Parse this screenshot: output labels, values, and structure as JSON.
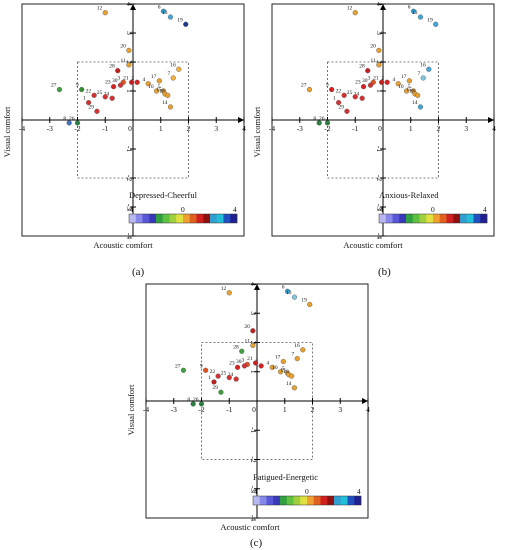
{
  "figure": {
    "panel_labels": [
      "(a)",
      "(b)",
      "(c)"
    ]
  },
  "chart_data": [
    {
      "type": "scatter",
      "panel": "(a)",
      "title": "Depressed-Cheerful",
      "xlabel": "Acoustic comfort",
      "ylabel": "Visual comfort",
      "xlim": [
        -4,
        4
      ],
      "ylim": [
        -4,
        4
      ],
      "xticks": [
        -4,
        -3,
        -2,
        -1,
        0,
        1,
        2,
        3,
        4
      ],
      "yticks_shown": [
        4,
        3,
        2,
        1,
        -1,
        -2,
        -3,
        -4
      ],
      "dashed_box": {
        "x": [
          -2,
          2
        ],
        "y": [
          -2,
          2
        ]
      },
      "colorbar": {
        "min": -4,
        "max": 4,
        "tick_labels": [
          "-4",
          "0",
          "4"
        ]
      },
      "points": [
        {
          "id": "1",
          "x": -1.6,
          "y": 0.6,
          "color": "#d83030"
        },
        {
          "id": "2",
          "x": 0.15,
          "y": 1.3,
          "color": "#d82020"
        },
        {
          "id": "3",
          "x": -0.35,
          "y": 1.3,
          "color": "#e05020"
        },
        {
          "id": "4",
          "x": 0.55,
          "y": 1.25,
          "color": "#e8a030"
        },
        {
          "id": "5",
          "x": 1.1,
          "y": 1.0,
          "color": "#e8a030"
        },
        {
          "id": "6",
          "x": 1.1,
          "y": 3.75,
          "color": "#3aa0d0"
        },
        {
          "id": "7",
          "x": 1.45,
          "y": 1.45,
          "color": "#f0b040"
        },
        {
          "id": "8",
          "x": -2.3,
          "y": -0.1,
          "color": "#4070c0"
        },
        {
          "id": "9",
          "x": -1.85,
          "y": 1.05,
          "color": "#309030"
        },
        {
          "id": "10",
          "x": 0.85,
          "y": 1.0,
          "color": "#e8a030"
        },
        {
          "id": "11",
          "x": -0.15,
          "y": 1.9,
          "color": "#e8a030"
        },
        {
          "id": "12",
          "x": -1.0,
          "y": 3.7,
          "color": "#e8a030"
        },
        {
          "id": "13",
          "x": 1.35,
          "y": 3.55,
          "color": "#40a8d8"
        },
        {
          "id": "14",
          "x": 1.35,
          "y": 0.45,
          "color": "#e8a030"
        },
        {
          "id": "15",
          "x": 1.15,
          "y": 0.9,
          "color": "#e8a030"
        },
        {
          "id": "16",
          "x": 1.65,
          "y": 1.75,
          "color": "#f0b040"
        },
        {
          "id": "17",
          "x": 0.95,
          "y": 1.35,
          "color": "#e8a030"
        },
        {
          "id": "18",
          "x": 1.25,
          "y": 0.85,
          "color": "#e8a030"
        },
        {
          "id": "19",
          "x": 1.9,
          "y": 3.3,
          "color": "#203890"
        },
        {
          "id": "20",
          "x": -0.15,
          "y": 2.4,
          "color": "#e8a030"
        },
        {
          "id": "21",
          "x": -0.05,
          "y": 1.3,
          "color": "#c82020"
        },
        {
          "id": "22",
          "x": -1.4,
          "y": 0.85,
          "color": "#d83030"
        },
        {
          "id": "23",
          "x": -0.7,
          "y": 1.15,
          "color": "#d82020"
        },
        {
          "id": "24",
          "x": -0.75,
          "y": 0.75,
          "color": "#d83030"
        },
        {
          "id": "25",
          "x": -1.0,
          "y": 0.8,
          "color": "#d83030"
        },
        {
          "id": "26",
          "x": -2.0,
          "y": -0.1,
          "color": "#2a8040"
        },
        {
          "id": "27",
          "x": -2.65,
          "y": 1.05,
          "color": "#40a040"
        },
        {
          "id": "28",
          "x": -0.55,
          "y": 1.7,
          "color": "#c02020"
        },
        {
          "id": "29",
          "x": -1.3,
          "y": 0.3,
          "color": "#d83030"
        },
        {
          "id": "30",
          "x": -0.45,
          "y": 1.2,
          "color": "#d83030"
        }
      ]
    },
    {
      "type": "scatter",
      "panel": "(b)",
      "title": "Anxious-Relaxed",
      "xlabel": "Acoustic comfort",
      "ylabel": "Visual comfort",
      "xlim": [
        -4,
        4
      ],
      "ylim": [
        -4,
        4
      ],
      "xticks": [
        -4,
        -3,
        -2,
        -1,
        0,
        1,
        2,
        3,
        4
      ],
      "yticks_shown": [
        4,
        3,
        2,
        1,
        -1,
        -2,
        -3,
        -4
      ],
      "dashed_box": {
        "x": [
          -2,
          2
        ],
        "y": [
          -2,
          2
        ]
      },
      "colorbar": {
        "min": -4,
        "max": 4,
        "tick_labels": [
          "-4",
          "0",
          "4"
        ]
      },
      "points": [
        {
          "id": "1",
          "x": -1.6,
          "y": 0.6,
          "color": "#d83030"
        },
        {
          "id": "2",
          "x": 0.15,
          "y": 1.3,
          "color": "#d82020"
        },
        {
          "id": "3",
          "x": -0.35,
          "y": 1.3,
          "color": "#e05020"
        },
        {
          "id": "4",
          "x": 0.55,
          "y": 1.25,
          "color": "#e8a030"
        },
        {
          "id": "5",
          "x": 1.1,
          "y": 1.0,
          "color": "#e8a030"
        },
        {
          "id": "6",
          "x": 1.1,
          "y": 3.75,
          "color": "#3aa0d0"
        },
        {
          "id": "7",
          "x": 1.45,
          "y": 1.45,
          "color": "#80c8e0"
        },
        {
          "id": "8",
          "x": -2.3,
          "y": -0.1,
          "color": "#2a8040"
        },
        {
          "id": "9",
          "x": -1.85,
          "y": 1.05,
          "color": "#d82020"
        },
        {
          "id": "10",
          "x": 0.85,
          "y": 1.0,
          "color": "#e8a030"
        },
        {
          "id": "11",
          "x": -0.15,
          "y": 1.9,
          "color": "#e8a030"
        },
        {
          "id": "12",
          "x": -1.0,
          "y": 3.7,
          "color": "#e8a030"
        },
        {
          "id": "13",
          "x": 1.35,
          "y": 3.55,
          "color": "#40a8d8"
        },
        {
          "id": "14",
          "x": 1.35,
          "y": 0.45,
          "color": "#40a8d8"
        },
        {
          "id": "15",
          "x": 1.15,
          "y": 0.9,
          "color": "#e8a030"
        },
        {
          "id": "16",
          "x": 1.65,
          "y": 1.75,
          "color": "#40a8d8"
        },
        {
          "id": "17",
          "x": 0.95,
          "y": 1.35,
          "color": "#e8a030"
        },
        {
          "id": "18",
          "x": 1.25,
          "y": 0.85,
          "color": "#e8a030"
        },
        {
          "id": "19",
          "x": 1.9,
          "y": 3.3,
          "color": "#40a8d8"
        },
        {
          "id": "20",
          "x": -0.15,
          "y": 2.4,
          "color": "#e8a030"
        },
        {
          "id": "21",
          "x": -0.05,
          "y": 1.3,
          "color": "#c82020"
        },
        {
          "id": "22",
          "x": -1.4,
          "y": 0.85,
          "color": "#d83030"
        },
        {
          "id": "23",
          "x": -0.7,
          "y": 1.15,
          "color": "#d82020"
        },
        {
          "id": "24",
          "x": -0.75,
          "y": 0.75,
          "color": "#d83030"
        },
        {
          "id": "25",
          "x": -1.0,
          "y": 0.8,
          "color": "#d83030"
        },
        {
          "id": "26",
          "x": -2.0,
          "y": -0.1,
          "color": "#2a8040"
        },
        {
          "id": "27",
          "x": -2.65,
          "y": 1.05,
          "color": "#e8a030"
        },
        {
          "id": "28",
          "x": -0.55,
          "y": 1.7,
          "color": "#c02020"
        },
        {
          "id": "29",
          "x": -1.3,
          "y": 0.3,
          "color": "#d83030"
        },
        {
          "id": "30",
          "x": -0.45,
          "y": 1.2,
          "color": "#d83030"
        }
      ]
    },
    {
      "type": "scatter",
      "panel": "(c)",
      "title": "Fatigued-Energetic",
      "xlabel": "Acoustic comfort",
      "ylabel": "Visual comfort",
      "xlim": [
        -4,
        4
      ],
      "ylim": [
        -4,
        4
      ],
      "xticks": [
        -4,
        -3,
        -2,
        -1,
        0,
        1,
        2,
        3,
        4
      ],
      "yticks_shown": [
        4,
        3,
        2,
        1,
        -1,
        -2,
        -3,
        -4
      ],
      "dashed_box": {
        "x": [
          -2,
          2
        ],
        "y": [
          -2,
          2
        ]
      },
      "colorbar": {
        "min": -4,
        "max": 4,
        "tick_labels": [
          "-4",
          "0",
          "4"
        ]
      },
      "points": [
        {
          "id": "1",
          "x": -1.55,
          "y": 0.65,
          "color": "#c02020"
        },
        {
          "id": "2",
          "x": 0.15,
          "y": 1.2,
          "color": "#d82020"
        },
        {
          "id": "3",
          "x": -0.35,
          "y": 1.25,
          "color": "#e05020"
        },
        {
          "id": "4",
          "x": 0.55,
          "y": 1.15,
          "color": "#e8a030"
        },
        {
          "id": "5",
          "x": 1.1,
          "y": 0.95,
          "color": "#e8a030"
        },
        {
          "id": "6",
          "x": 1.1,
          "y": 3.75,
          "color": "#3aa0d0"
        },
        {
          "id": "7",
          "x": 1.45,
          "y": 1.45,
          "color": "#e8a030"
        },
        {
          "id": "8",
          "x": -2.3,
          "y": -0.1,
          "color": "#2a8040"
        },
        {
          "id": "9",
          "x": -1.85,
          "y": 1.05,
          "color": "#e05020"
        },
        {
          "id": "10",
          "x": 0.85,
          "y": 1.0,
          "color": "#e8a030"
        },
        {
          "id": "11",
          "x": -0.15,
          "y": 1.9,
          "color": "#e8a030"
        },
        {
          "id": "12",
          "x": -1.0,
          "y": 3.7,
          "color": "#e8a030"
        },
        {
          "id": "13",
          "x": 1.35,
          "y": 3.55,
          "color": "#80c8e0"
        },
        {
          "id": "14",
          "x": 1.35,
          "y": 0.45,
          "color": "#e8a030"
        },
        {
          "id": "15",
          "x": 1.15,
          "y": 0.9,
          "color": "#e8a030"
        },
        {
          "id": "16",
          "x": 1.65,
          "y": 1.75,
          "color": "#e8a030"
        },
        {
          "id": "17",
          "x": 0.95,
          "y": 1.35,
          "color": "#e8a030"
        },
        {
          "id": "18",
          "x": 1.25,
          "y": 0.85,
          "color": "#e8a030"
        },
        {
          "id": "19",
          "x": 1.9,
          "y": 3.3,
          "color": "#e8a030"
        },
        {
          "id": "20",
          "x": -0.15,
          "y": 2.4,
          "color": "#c02020"
        },
        {
          "id": "21",
          "x": -0.05,
          "y": 1.3,
          "color": "#c82020"
        },
        {
          "id": "22",
          "x": -1.4,
          "y": 0.85,
          "color": "#d83030"
        },
        {
          "id": "23",
          "x": -0.7,
          "y": 1.15,
          "color": "#d82020"
        },
        {
          "id": "24",
          "x": -0.75,
          "y": 0.75,
          "color": "#d83030"
        },
        {
          "id": "25",
          "x": -1.0,
          "y": 0.8,
          "color": "#d83030"
        },
        {
          "id": "26",
          "x": -2.0,
          "y": -0.1,
          "color": "#2a8040"
        },
        {
          "id": "27",
          "x": -2.65,
          "y": 1.05,
          "color": "#40a040"
        },
        {
          "id": "28",
          "x": -0.55,
          "y": 1.7,
          "color": "#40a040"
        },
        {
          "id": "29",
          "x": -1.3,
          "y": 0.3,
          "color": "#40a040"
        },
        {
          "id": "30",
          "x": -0.45,
          "y": 1.2,
          "color": "#d83030"
        }
      ]
    }
  ]
}
